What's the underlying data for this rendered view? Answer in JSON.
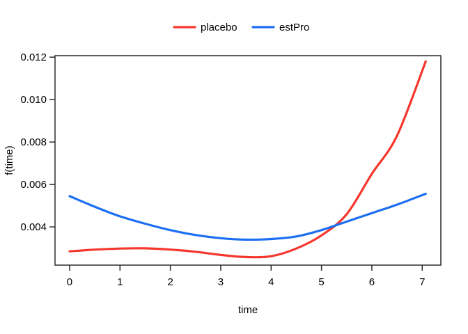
{
  "chart_data": {
    "type": "line",
    "title": "",
    "xlabel": "time",
    "ylabel": "f(time)",
    "x": [
      0,
      0.5,
      1,
      1.5,
      2,
      2.5,
      3,
      3.5,
      4,
      4.5,
      5,
      5.5,
      6,
      6.5,
      7.07
    ],
    "series": [
      {
        "name": "placebo",
        "color": "#f5372e",
        "values": [
          0.00285,
          0.00293,
          0.00298,
          0.00299,
          0.00293,
          0.00283,
          0.00268,
          0.00258,
          0.00262,
          0.00298,
          0.0036,
          0.0046,
          0.0065,
          0.0083,
          0.0118
        ]
      },
      {
        "name": "estPro",
        "color": "#1c6ef2",
        "values": [
          0.00545,
          0.00495,
          0.0045,
          0.00415,
          0.00385,
          0.00362,
          0.00347,
          0.0034,
          0.00343,
          0.00355,
          0.00385,
          0.00425,
          0.00465,
          0.00505,
          0.00556
        ]
      }
    ],
    "xticks": [
      0,
      1,
      2,
      3,
      4,
      5,
      6,
      7
    ],
    "xtick_labels": [
      "0",
      "1",
      "2",
      "3",
      "4",
      "5",
      "6",
      "7"
    ],
    "yticks": [
      0.004,
      0.006,
      0.008,
      0.01,
      0.012
    ],
    "ytick_labels": [
      "0.004",
      "0.006",
      "0.008",
      "0.010",
      "0.012"
    ],
    "xlim": [
      -0.29,
      7.37
    ],
    "ylim": [
      0.0022,
      0.01207
    ],
    "grid": false,
    "legend_position": "top-center"
  },
  "colors": {
    "axis": "#2b2b2b",
    "text": "#000000",
    "background": "#ffffff"
  }
}
